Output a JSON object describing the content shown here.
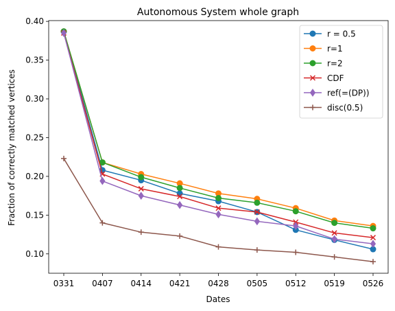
{
  "chart_data": {
    "type": "line",
    "title": "Autonomous System whole graph",
    "xlabel": "Dates",
    "ylabel": "Fraction of correctly matched vertices",
    "categories": [
      "0331",
      "0407",
      "0414",
      "0421",
      "0428",
      "0505",
      "0512",
      "0519",
      "0526"
    ],
    "ylim": [
      0.075,
      0.401
    ],
    "yticks": [
      "0.10",
      "0.15",
      "0.20",
      "0.25",
      "0.30",
      "0.35",
      "0.40"
    ],
    "ytick_values": [
      0.1,
      0.15,
      0.2,
      0.25,
      0.3,
      0.35,
      0.4
    ],
    "grid": false,
    "legend_position": "top-right",
    "series": [
      {
        "name": "r = 0.5",
        "color": "#1f77b4",
        "marker": "circle",
        "values": [
          0.387,
          0.208,
          0.195,
          0.178,
          0.168,
          0.154,
          0.131,
          0.118,
          0.106
        ]
      },
      {
        "name": "r=1",
        "color": "#ff7f0e",
        "marker": "circle",
        "values": [
          0.387,
          0.218,
          0.203,
          0.191,
          0.178,
          0.171,
          0.159,
          0.143,
          0.136
        ]
      },
      {
        "name": "r=2",
        "color": "#2ca02c",
        "marker": "circle",
        "values": [
          0.387,
          0.218,
          0.199,
          0.185,
          0.172,
          0.166,
          0.155,
          0.14,
          0.133
        ]
      },
      {
        "name": "CDF",
        "color": "#d62728",
        "marker": "x",
        "values": [
          0.385,
          0.203,
          0.184,
          0.174,
          0.159,
          0.154,
          0.141,
          0.127,
          0.121
        ]
      },
      {
        "name": "ref(=(DP))",
        "color": "#9467bd",
        "marker": "diamond",
        "values": [
          0.385,
          0.194,
          0.175,
          0.163,
          0.151,
          0.142,
          0.136,
          0.119,
          0.113
        ]
      },
      {
        "name": "disc(0.5)",
        "color": "#8c564b",
        "marker": "plus",
        "values": [
          0.223,
          0.14,
          0.128,
          0.123,
          0.109,
          0.105,
          0.102,
          0.096,
          0.09
        ]
      }
    ]
  }
}
